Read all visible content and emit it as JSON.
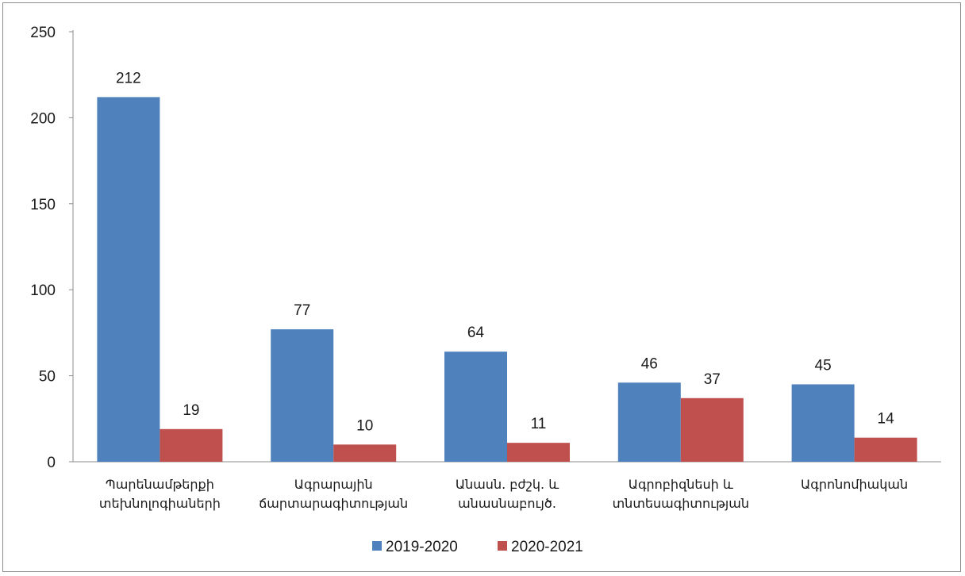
{
  "chart_data": {
    "type": "bar",
    "categories": [
      [
        "Պարենամթերքի",
        "տեխնոլոգիաների"
      ],
      [
        "Ագրարային",
        "ճարտարագիտության"
      ],
      [
        "Անասն. բժշկ. և",
        "անասնաբույծ."
      ],
      [
        "Ագրոբիզնեսի և",
        "տնտեսագիտության"
      ],
      [
        "Ագրոնոմիական"
      ]
    ],
    "series": [
      {
        "name": "2019-2020",
        "values": [
          212,
          77,
          64,
          46,
          45
        ],
        "color": "#4f81bd"
      },
      {
        "name": "2020-2021",
        "values": [
          19,
          10,
          11,
          37,
          14
        ],
        "color": "#c0504d"
      }
    ],
    "yticks": [
      "0",
      "50",
      "100",
      "150",
      "200",
      "250"
    ],
    "ylim": [
      0,
      250
    ],
    "grid": false,
    "legend_position": "bottom"
  }
}
